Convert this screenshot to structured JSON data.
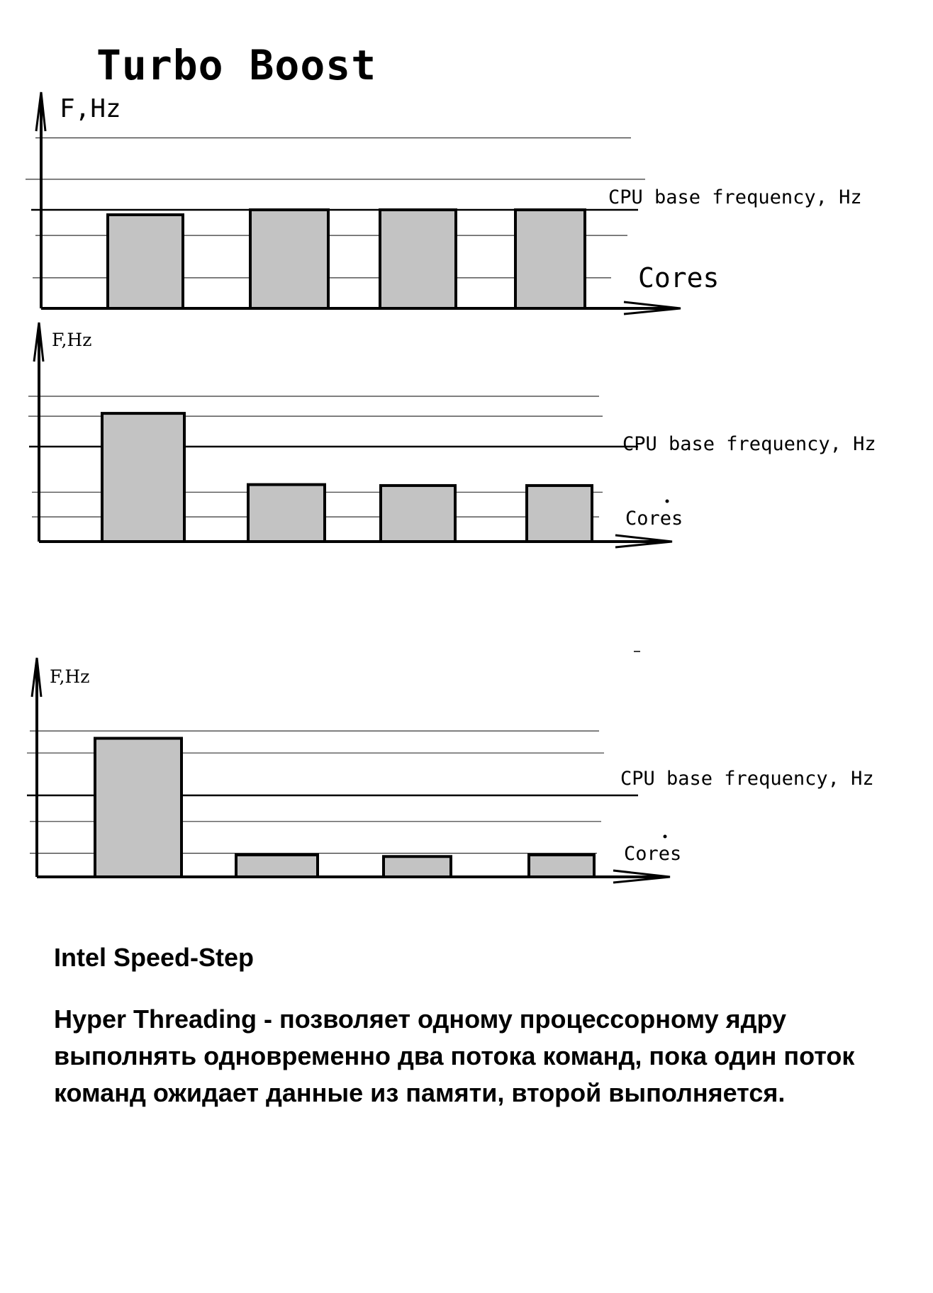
{
  "title": "Turbo Boost",
  "panels": [
    {
      "ylabel": "F,Hz",
      "base_label": "CPU base frequency, Hz",
      "xlabel": "Cores",
      "bars": [
        0.95,
        1.0,
        1.0,
        1.0
      ]
    },
    {
      "ylabel": "F,Hz",
      "base_label": "CPU base frequency, Hz",
      "xlabel": "Cores",
      "bars": [
        1.35,
        0.6,
        0.59,
        0.59
      ]
    },
    {
      "ylabel": "F,Hz",
      "base_label": "CPU base frequency, Hz",
      "xlabel": "Cores",
      "bars": [
        1.7,
        0.27,
        0.25,
        0.27
      ]
    }
  ],
  "notes": {
    "speed_step": "Intel Speed-Step",
    "hyper_threading": "Hyper Threading - позволяет одному процессорному ядру выполнять одновременно два потока команд, пока один поток команд ожидает данные из памяти, второй выполняется."
  }
}
